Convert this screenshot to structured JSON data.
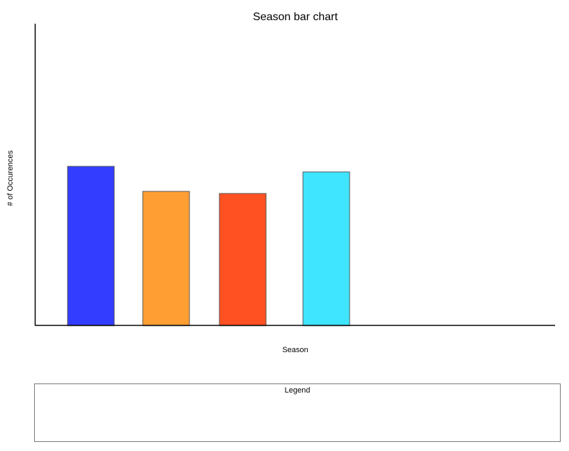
{
  "chart_data": {
    "type": "bar",
    "title": "Season bar chart",
    "xlabel": "Season",
    "ylabel": "# of Occurences",
    "categories": [
      "",
      "",
      "",
      ""
    ],
    "values": [
      228,
      192,
      189,
      220
    ],
    "colors": [
      "#333dff",
      "#ff9f33",
      "#ff5122",
      "#3fe5ff"
    ],
    "ylim": [
      0,
      432
    ],
    "grid": false,
    "legend": {
      "title": "Legend",
      "entries": [],
      "placement": "bottom"
    }
  }
}
